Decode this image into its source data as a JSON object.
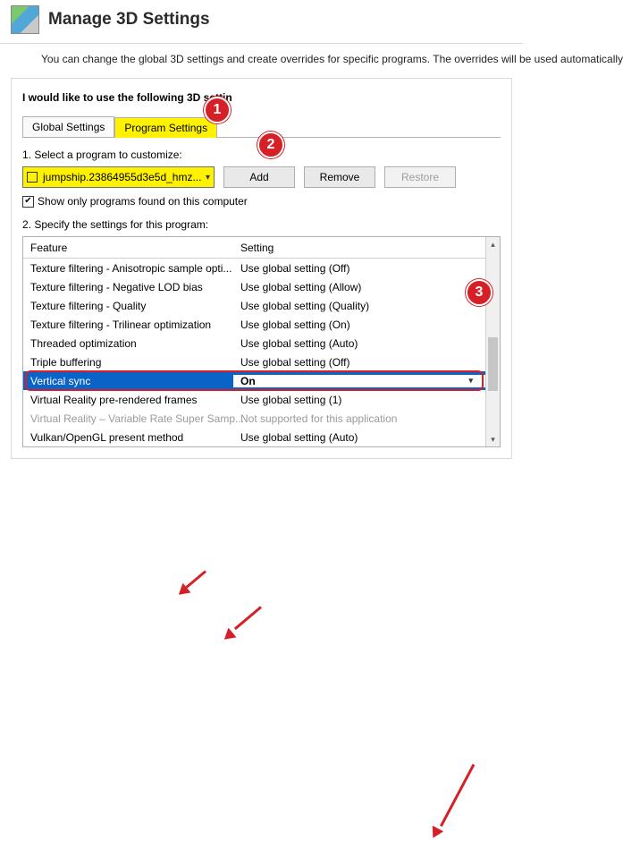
{
  "colors": {
    "highlight": "#fff200",
    "callout": "#d62027",
    "selection": "#0a63c7"
  },
  "header": {
    "title": "Manage 3D Settings"
  },
  "description": "You can change the global 3D settings and create overrides for specific programs. The overrides will be used automatically",
  "panel": {
    "title_prefix": "I would like to use the following 3D settin",
    "tabs": {
      "global": "Global Settings",
      "program": "Program Settings"
    },
    "section1_label": "1. Select a program to customize:",
    "program_select": "jumpship.23864955d3e5d_hmz...",
    "buttons": {
      "add": "Add",
      "remove": "Remove",
      "restore": "Restore"
    },
    "show_only": "Show only programs found on this computer",
    "section2_label": "2. Specify the settings for this program:",
    "table": {
      "headers": {
        "feature": "Feature",
        "setting": "Setting"
      },
      "rows": [
        {
          "f": "Texture filtering - Anisotropic sample opti...",
          "s": "Use global setting (Off)"
        },
        {
          "f": "Texture filtering - Negative LOD bias",
          "s": "Use global setting (Allow)"
        },
        {
          "f": "Texture filtering - Quality",
          "s": "Use global setting (Quality)"
        },
        {
          "f": "Texture filtering - Trilinear optimization",
          "s": "Use global setting (On)"
        },
        {
          "f": "Threaded optimization",
          "s": "Use global setting (Auto)"
        },
        {
          "f": "Triple buffering",
          "s": "Use global setting (Off)"
        },
        {
          "f": "Vertical sync",
          "s": "On",
          "selected": true,
          "dropdown": true
        },
        {
          "f": "Virtual Reality pre-rendered frames",
          "s": "Use global setting (1)"
        },
        {
          "f": "Virtual Reality – Variable Rate Super Samp...",
          "s": "Not supported for this application",
          "disabled": true
        },
        {
          "f": "Vulkan/OpenGL present method",
          "s": "Use global setting (Auto)"
        }
      ]
    }
  },
  "callouts": {
    "c1": "1",
    "c2": "2",
    "c3": "3"
  }
}
